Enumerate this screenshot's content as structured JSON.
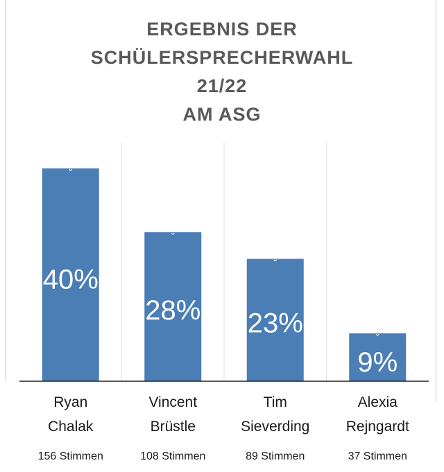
{
  "chart_data": {
    "type": "bar",
    "title_lines": [
      "ERGEBNIS DER",
      "SCHÜLERSPRECHERWAHL",
      "21/22",
      "AM ASG"
    ],
    "categories": [
      [
        "Ryan",
        "Chalak"
      ],
      [
        "Vincent",
        "Brüstle"
      ],
      [
        "Tim",
        "Sieverding"
      ],
      [
        "Alexia",
        "Rejngardt"
      ]
    ],
    "values": [
      40,
      28,
      23,
      9
    ],
    "data_labels": [
      "40%",
      "28%",
      "23%",
      "9%"
    ],
    "vote_counts": [
      "156 Stimmen",
      "108 Stimmen",
      "89 Stimmen",
      "37 Stimmen"
    ],
    "ylim": [
      0,
      40
    ],
    "grid": "vertical",
    "bar_color": "#4a7eb5",
    "label_color": "#ffffff"
  }
}
